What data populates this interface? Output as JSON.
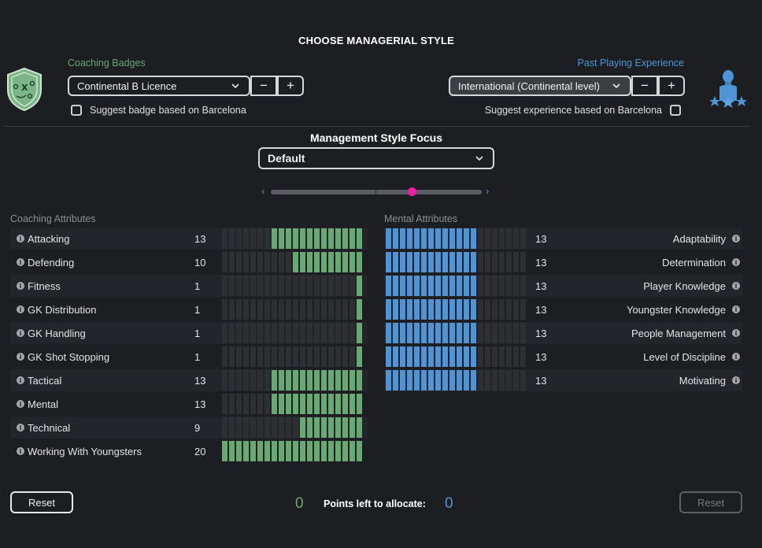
{
  "title": "CHOOSE MANAGERIAL STYLE",
  "coaching": {
    "label": "Coaching Badges",
    "selected": "Continental B Licence",
    "suggest_label": "Suggest badge based on Barcelona",
    "minus": "−",
    "plus": "+"
  },
  "experience": {
    "label": "Past Playing Experience",
    "selected": "International (Continental level)",
    "suggest_label": "Suggest experience based on Barcelona",
    "minus": "−",
    "plus": "+"
  },
  "focus": {
    "title": "Management Style Focus",
    "selected": "Default",
    "slider_fraction": 0.67,
    "left_arrow": "‹",
    "right_arrow": "›"
  },
  "coaching_attributes": {
    "header": "Coaching Attributes",
    "max": 20,
    "items": [
      {
        "label": "Attacking",
        "value": 13
      },
      {
        "label": "Defending",
        "value": 10
      },
      {
        "label": "Fitness",
        "value": 1
      },
      {
        "label": "GK Distribution",
        "value": 1
      },
      {
        "label": "GK Handling",
        "value": 1
      },
      {
        "label": "GK Shot Stopping",
        "value": 1
      },
      {
        "label": "Tactical",
        "value": 13
      },
      {
        "label": "Mental",
        "value": 13
      },
      {
        "label": "Technical",
        "value": 9
      },
      {
        "label": "Working With Youngsters",
        "value": 20
      }
    ]
  },
  "mental_attributes": {
    "header": "Mental Attributes",
    "max": 20,
    "items": [
      {
        "label": "Adaptability",
        "value": 13
      },
      {
        "label": "Determination",
        "value": 13
      },
      {
        "label": "Player Knowledge",
        "value": 13
      },
      {
        "label": "Youngster Knowledge",
        "value": 13
      },
      {
        "label": "People Management",
        "value": 13
      },
      {
        "label": "Level of Discipline",
        "value": 13
      },
      {
        "label": "Motivating",
        "value": 13
      }
    ]
  },
  "footer": {
    "reset_left": "Reset",
    "reset_right": "Reset",
    "points_label": "Points left to allocate:",
    "points_left_green": "0",
    "points_left_blue": "0"
  },
  "colors": {
    "green": "#67a873",
    "blue": "#4f95d6",
    "slider_thumb": "#ee1fa6"
  },
  "icons": {
    "info": "info-icon",
    "badge": "coaching-badge-icon",
    "player": "player-experience-icon",
    "chevron": "chevron-down-icon"
  }
}
